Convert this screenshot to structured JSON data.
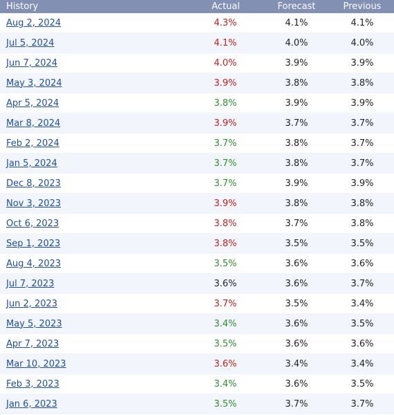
{
  "colors": {
    "header_bg": "#8190b3",
    "link": "#1f4e9a",
    "up": "#c21d1d",
    "down": "#2f8f2f",
    "neutral": "#222222"
  },
  "header": {
    "history": "History",
    "actual": "Actual",
    "forecast": "Forecast",
    "previous": "Previous"
  },
  "rows": [
    {
      "date": "Aug 2, 2024",
      "actual": "4.3%",
      "actual_color": "red",
      "forecast": "4.1%",
      "previous": "4.1%"
    },
    {
      "date": "Jul 5, 2024",
      "actual": "4.1%",
      "actual_color": "red",
      "forecast": "4.0%",
      "previous": "4.0%"
    },
    {
      "date": "Jun 7, 2024",
      "actual": "4.0%",
      "actual_color": "red",
      "forecast": "3.9%",
      "previous": "3.9%"
    },
    {
      "date": "May 3, 2024",
      "actual": "3.9%",
      "actual_color": "red",
      "forecast": "3.8%",
      "previous": "3.8%"
    },
    {
      "date": "Apr 5, 2024",
      "actual": "3.8%",
      "actual_color": "green",
      "forecast": "3.9%",
      "previous": "3.9%"
    },
    {
      "date": "Mar 8, 2024",
      "actual": "3.9%",
      "actual_color": "red",
      "forecast": "3.7%",
      "previous": "3.7%"
    },
    {
      "date": "Feb 2, 2024",
      "actual": "3.7%",
      "actual_color": "green",
      "forecast": "3.8%",
      "previous": "3.7%"
    },
    {
      "date": "Jan 5, 2024",
      "actual": "3.7%",
      "actual_color": "green",
      "forecast": "3.8%",
      "previous": "3.7%"
    },
    {
      "date": "Dec 8, 2023",
      "actual": "3.7%",
      "actual_color": "green",
      "forecast": "3.9%",
      "previous": "3.9%"
    },
    {
      "date": "Nov 3, 2023",
      "actual": "3.9%",
      "actual_color": "red",
      "forecast": "3.8%",
      "previous": "3.8%"
    },
    {
      "date": "Oct 6, 2023",
      "actual": "3.8%",
      "actual_color": "red",
      "forecast": "3.7%",
      "previous": "3.8%"
    },
    {
      "date": "Sep 1, 2023",
      "actual": "3.8%",
      "actual_color": "red",
      "forecast": "3.5%",
      "previous": "3.5%"
    },
    {
      "date": "Aug 4, 2023",
      "actual": "3.5%",
      "actual_color": "green",
      "forecast": "3.6%",
      "previous": "3.6%"
    },
    {
      "date": "Jul 7, 2023",
      "actual": "3.6%",
      "actual_color": "neutral",
      "forecast": "3.6%",
      "previous": "3.7%"
    },
    {
      "date": "Jun 2, 2023",
      "actual": "3.7%",
      "actual_color": "red",
      "forecast": "3.5%",
      "previous": "3.4%"
    },
    {
      "date": "May 5, 2023",
      "actual": "3.4%",
      "actual_color": "green",
      "forecast": "3.6%",
      "previous": "3.5%"
    },
    {
      "date": "Apr 7, 2023",
      "actual": "3.5%",
      "actual_color": "green",
      "forecast": "3.6%",
      "previous": "3.6%"
    },
    {
      "date": "Mar 10, 2023",
      "actual": "3.6%",
      "actual_color": "red",
      "forecast": "3.4%",
      "previous": "3.4%"
    },
    {
      "date": "Feb 3, 2023",
      "actual": "3.4%",
      "actual_color": "green",
      "forecast": "3.6%",
      "previous": "3.5%"
    },
    {
      "date": "Jan 6, 2023",
      "actual": "3.5%",
      "actual_color": "green",
      "forecast": "3.7%",
      "previous": "3.7%"
    }
  ]
}
